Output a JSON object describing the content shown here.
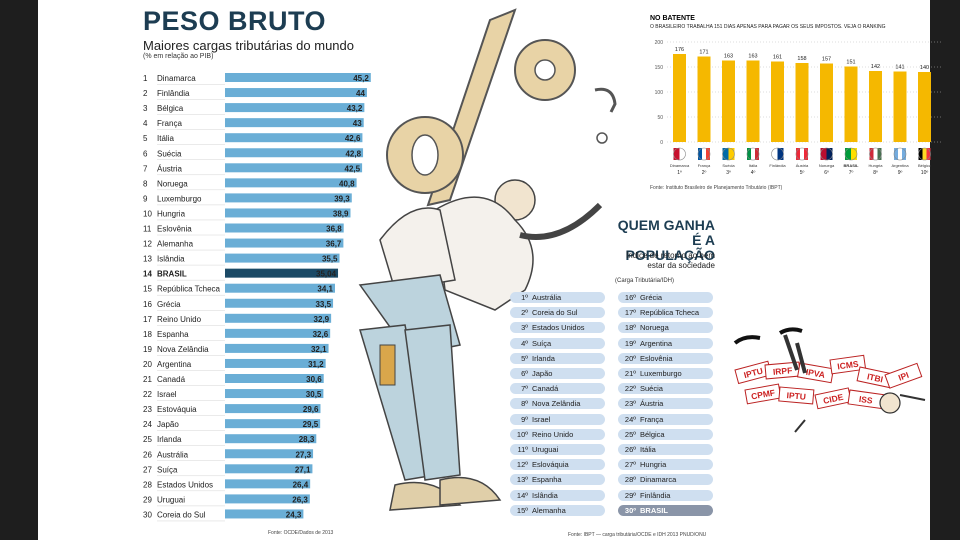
{
  "left_chart": {
    "title": "PESO BRUTO",
    "subtitle": "Maiores cargas tributárias do mundo",
    "note": "(% em relação ao PIB)",
    "source": "Fonte: OCDE/Dados de 2013"
  },
  "top_chart": {
    "title": "NO BATENTE",
    "subtitle": "O BRASILEIRO TRABALHA 151 DIAS APENAS PARA PAGAR OS SEUS IMPOSTOS. VEJA O RANKING",
    "source": "Fonte: Instituto Brasileiro de Planejamento Tributário (IBPT)"
  },
  "right_list": {
    "title_line1": "QUEM GANHA",
    "title_line2": "É A POPULAÇÃO",
    "subtitle_line1": "Índice de retorno ao bem",
    "subtitle_line2": "estar da sociedade",
    "note": "(Carga Tributária/IDH)",
    "source": "Fonte: IBPT — carga tributária/OCDE e IDH 2013 PNUD/ONU",
    "left_column": [
      {
        "rank": "1º",
        "country": "Austrália"
      },
      {
        "rank": "2º",
        "country": "Coreia do Sul"
      },
      {
        "rank": "3º",
        "country": "Estados Unidos"
      },
      {
        "rank": "4º",
        "country": "Suíça"
      },
      {
        "rank": "5º",
        "country": "Irlanda"
      },
      {
        "rank": "6º",
        "country": "Japão"
      },
      {
        "rank": "7º",
        "country": "Canadá"
      },
      {
        "rank": "8º",
        "country": "Nova Zelândia"
      },
      {
        "rank": "9º",
        "country": "Israel"
      },
      {
        "rank": "10º",
        "country": "Reino Unido"
      },
      {
        "rank": "11º",
        "country": "Uruguai"
      },
      {
        "rank": "12º",
        "country": "Eslováquia"
      },
      {
        "rank": "13º",
        "country": "Espanha"
      },
      {
        "rank": "14º",
        "country": "Islândia"
      },
      {
        "rank": "15º",
        "country": "Alemanha"
      }
    ],
    "right_column": [
      {
        "rank": "16º",
        "country": "Grécia"
      },
      {
        "rank": "17º",
        "country": "República Tcheca"
      },
      {
        "rank": "18º",
        "country": "Noruega"
      },
      {
        "rank": "19º",
        "country": "Argentina"
      },
      {
        "rank": "20º",
        "country": "Eslovênia"
      },
      {
        "rank": "21º",
        "country": "Luxemburgo"
      },
      {
        "rank": "22º",
        "country": "Suécia"
      },
      {
        "rank": "23º",
        "country": "Áustria"
      },
      {
        "rank": "24º",
        "country": "França"
      },
      {
        "rank": "25º",
        "country": "Bélgica"
      },
      {
        "rank": "26º",
        "country": "Itália"
      },
      {
        "rank": "27º",
        "country": "Hungria"
      },
      {
        "rank": "28º",
        "country": "Dinamarca"
      },
      {
        "rank": "29º",
        "country": "Finlândia"
      },
      {
        "rank": "30º",
        "country": "BRASIL"
      }
    ]
  },
  "colors": {
    "title": "#1d3d52",
    "bar": "#6aaed6",
    "bar_highlight": "#1b4a66",
    "column": "#f5b800",
    "pill": "#cfdff0",
    "pill_highlight": "#8a95a8"
  },
  "chart_data": [
    {
      "type": "bar",
      "orientation": "horizontal",
      "highlight": "BRASIL",
      "ranks": [
        "1",
        "2",
        "3",
        "4",
        "5",
        "6",
        "7",
        "8",
        "9",
        "10",
        "11",
        "12",
        "13",
        "14",
        "15",
        "16",
        "17",
        "18",
        "19",
        "20",
        "21",
        "22",
        "23",
        "24",
        "25",
        "26",
        "27",
        "28",
        "29",
        "30"
      ],
      "categories": [
        "Dinamarca",
        "Finlândia",
        "Bélgica",
        "França",
        "Itália",
        "Suécia",
        "Áustria",
        "Noruega",
        "Luxemburgo",
        "Hungria",
        "Eslovênia",
        "Alemanha",
        "Islândia",
        "BRASIL",
        "República Tcheca",
        "Grécia",
        "Reino Unido",
        "Espanha",
        "Nova Zelândia",
        "Argentina",
        "Canadá",
        "Israel",
        "Estováquia",
        "Japão",
        "Irlanda",
        "Austrália",
        "Suíça",
        "Estados Unidos",
        "Uruguai",
        "Coreia do Sul"
      ],
      "value_labels": [
        "45,2",
        "44",
        "43,2",
        "43",
        "42,6",
        "42,8",
        "42,5",
        "40,8",
        "39,3",
        "38,9",
        "36,8",
        "36,7",
        "35,5",
        "35,04",
        "34,1",
        "33,5",
        "32,9",
        "32,6",
        "32,1",
        "31,2",
        "30,6",
        "30,5",
        "29,6",
        "29,5",
        "28,3",
        "27,3",
        "27,1",
        "26,4",
        "26,3",
        "24,3"
      ],
      "values": [
        45.2,
        44,
        43.2,
        43,
        42.6,
        42.8,
        42.5,
        40.8,
        39.3,
        38.9,
        36.8,
        36.7,
        35.5,
        35.04,
        34.1,
        33.5,
        32.9,
        32.6,
        32.1,
        31.2,
        30.6,
        30.5,
        29.6,
        29.5,
        28.3,
        27.3,
        27.1,
        26.4,
        26.3,
        24.3
      ]
    },
    {
      "type": "bar",
      "categories": [
        "Dinamarca",
        "França",
        "Suécia",
        "Itália",
        "Finlândia",
        "Áustria",
        "Noruega",
        "BRASIL",
        "Hungria",
        "Argentina",
        "Bélgica"
      ],
      "values": [
        176,
        171,
        163,
        163,
        161,
        158,
        157,
        151,
        142,
        141,
        140
      ],
      "ranks": [
        "1º",
        "2º",
        "3º",
        "4º",
        "",
        "5º",
        "6º",
        "7º",
        "8º",
        "9º",
        "10º"
      ],
      "highlight": "BRASIL",
      "ylim": [
        0,
        200
      ],
      "yticks": [
        0,
        50,
        100,
        150,
        200
      ],
      "flag_colors": [
        [
          "#c8102e",
          "#ffffff"
        ],
        [
          "#0055a4",
          "#ffffff",
          "#ef4135"
        ],
        [
          "#006aa7",
          "#fecc00"
        ],
        [
          "#009246",
          "#ffffff",
          "#ce2b37"
        ],
        [
          "#ffffff",
          "#003580"
        ],
        [
          "#ed2939",
          "#ffffff",
          "#ed2939"
        ],
        [
          "#ba0c2f",
          "#00205b"
        ],
        [
          "#009c3b",
          "#ffdf00"
        ],
        [
          "#ce2939",
          "#ffffff",
          "#477050"
        ],
        [
          "#74acdf",
          "#ffffff",
          "#74acdf"
        ],
        [
          "#000000",
          "#fdda24",
          "#ef3340"
        ]
      ]
    }
  ],
  "illustration": {
    "tax_signs": [
      "IPTU",
      "IRPF",
      "IPVA",
      "ICMS",
      "ITBI",
      "CPMF",
      "IPTU",
      "CIDE",
      "ISS",
      "IPI"
    ]
  }
}
